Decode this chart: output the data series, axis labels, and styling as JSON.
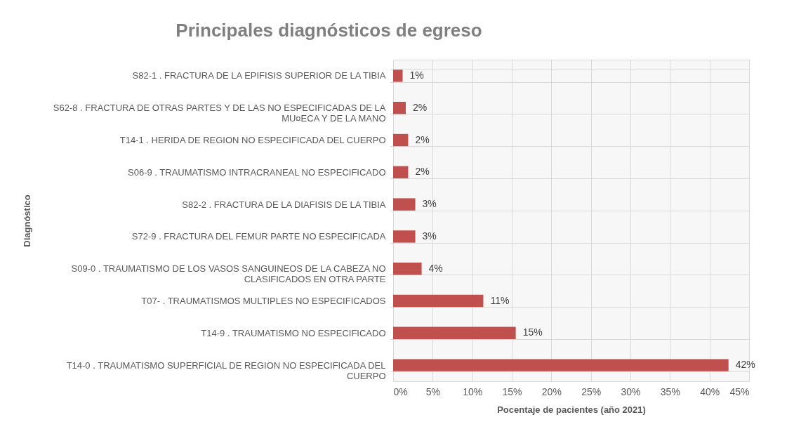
{
  "chart_data": {
    "type": "bar",
    "orientation": "horizontal",
    "title": "Principales diagnósticos de egreso",
    "xlabel": "Pocentaje de pacientes (año 2021)",
    "ylabel": "Diagnóstico",
    "categories": [
      "S82-1 . FRACTURA DE LA EPIFISIS SUPERIOR DE LA TIBIA",
      "S62-8 . FRACTURA DE OTRAS PARTES Y DE LAS NO ESPECIFICADAS DE LA MU¤ECA Y DE LA MANO",
      "T14-1 . HERIDA DE REGION NO ESPECIFICADA DEL CUERPO",
      "S06-9 . TRAUMATISMO INTRACRANEAL  NO ESPECIFICADO",
      "S82-2 . FRACTURA DE LA DIAFISIS DE LA TIBIA",
      "S72-9 . FRACTURA DEL FEMUR  PARTE NO ESPECIFICADA",
      "S09-0 . TRAUMATISMO DE LOS VASOS SANGUINEOS DE LA CABEZA NO CLASIFICADOS EN OTRA PARTE",
      "T07- . TRAUMATISMOS MULTIPLES  NO ESPECIFICADOS",
      "T14-9 . TRAUMATISMO  NO ESPECIFICADO",
      "T14-0 . TRAUMATISMO SUPERFICIAL DE REGION NO ESPECIFICADA DEL CUERPO"
    ],
    "values": [
      1.2,
      1.6,
      1.9,
      1.9,
      2.8,
      2.8,
      3.6,
      11.4,
      15.5,
      42.4
    ],
    "value_labels": [
      "1%",
      "2%",
      "2%",
      "2%",
      "3%",
      "3%",
      "4%",
      "11%",
      "15%",
      "42%"
    ],
    "color": "#c0504d",
    "xlim": [
      0,
      45
    ],
    "xticks": [
      {
        "value": 0,
        "label": "0%"
      },
      {
        "value": 5,
        "label": "5%"
      },
      {
        "value": 10,
        "label": "10%"
      },
      {
        "value": 15,
        "label": "15%"
      },
      {
        "value": 20,
        "label": "20%"
      },
      {
        "value": 25,
        "label": "25%"
      },
      {
        "value": 30,
        "label": "30%"
      },
      {
        "value": 35,
        "label": "35%"
      },
      {
        "value": 40,
        "label": "40%"
      },
      {
        "value": 45,
        "label": "45%"
      }
    ],
    "grid": true
  }
}
